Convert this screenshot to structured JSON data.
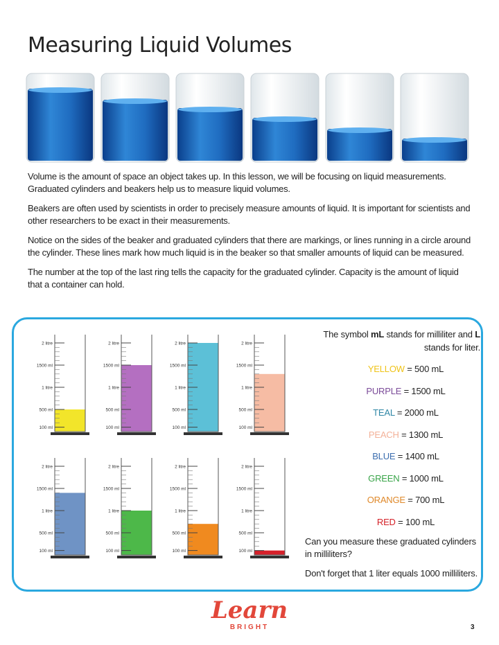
{
  "header": {
    "title": "Measuring Liquid Volumes"
  },
  "paragraphs": [
    "Volume is the amount of space an object takes up.  In this lesson, we will be focusing on liquid measurements. Graduated cylinders and beakers help us to measure liquid volumes.",
    "Beakers are often used by scientists in order to precisely measure amounts of liquid.  It is important for scientists and other researchers to be exact in their measurements.",
    "Notice on the sides of the beaker and graduated cylinders that there are markings, or lines running in a circle around the cylinder.  These lines mark how much liquid is in the beaker so that smaller amounts of liquid can be measured.",
    "The number at the top of the last ring tells the capacity for the graduated cylinder.  Capacity is the amount of liquid that a container can hold."
  ],
  "scale": [
    {
      "value": 2000,
      "label": "2 litre"
    },
    {
      "value": 1500,
      "label": "1500 ml"
    },
    {
      "value": 1000,
      "label": "1 litre"
    },
    {
      "value": 500,
      "label": "500 ml"
    },
    {
      "value": 100,
      "label": "100 ml"
    }
  ],
  "intro": [
    "The symbol ",
    "mL",
    " stands for milliliter and ",
    "L",
    " stands for liter."
  ],
  "cylinders": [
    {
      "name": "YELLOW",
      "amount": "= 500 mL",
      "ml": 500,
      "color": "#f2e52a",
      "text_color": "#efc318"
    },
    {
      "name": "PURPLE",
      "amount": "= 1500 mL",
      "ml": 1500,
      "color": "#b46fc1",
      "text_color": "#7a4a98"
    },
    {
      "name": "TEAL",
      "amount": "= 2000 mL",
      "ml": 2000,
      "color": "#5cc0d7",
      "text_color": "#2e86a5"
    },
    {
      "name": "PEACH",
      "amount": "= 1300 mL",
      "ml": 1300,
      "color": "#f6bca4",
      "text_color": "#f3b198"
    },
    {
      "name": "BLUE",
      "amount": "= 1400 mL",
      "ml": 1400,
      "color": "#6f93c5",
      "text_color": "#3c6eaf"
    },
    {
      "name": "GREEN",
      "amount": "= 1000 mL",
      "ml": 1000,
      "color": "#4db849",
      "text_color": "#38a448"
    },
    {
      "name": "ORANGE",
      "amount": "= 700 mL",
      "ml": 700,
      "color": "#f08a1f",
      "text_color": "#df8829"
    },
    {
      "name": "RED",
      "amount": "= 100 mL",
      "ml": 100,
      "color": "#d6202a",
      "text_color": "#d42027"
    }
  ],
  "questions": [
    "Can you measure these graduated cylinders in milliliters?",
    "Don't forget that 1 liter equals 1000 milliliters."
  ],
  "logo": {
    "word": "Learn",
    "sub": "BRIGHT"
  },
  "page_number": "3"
}
